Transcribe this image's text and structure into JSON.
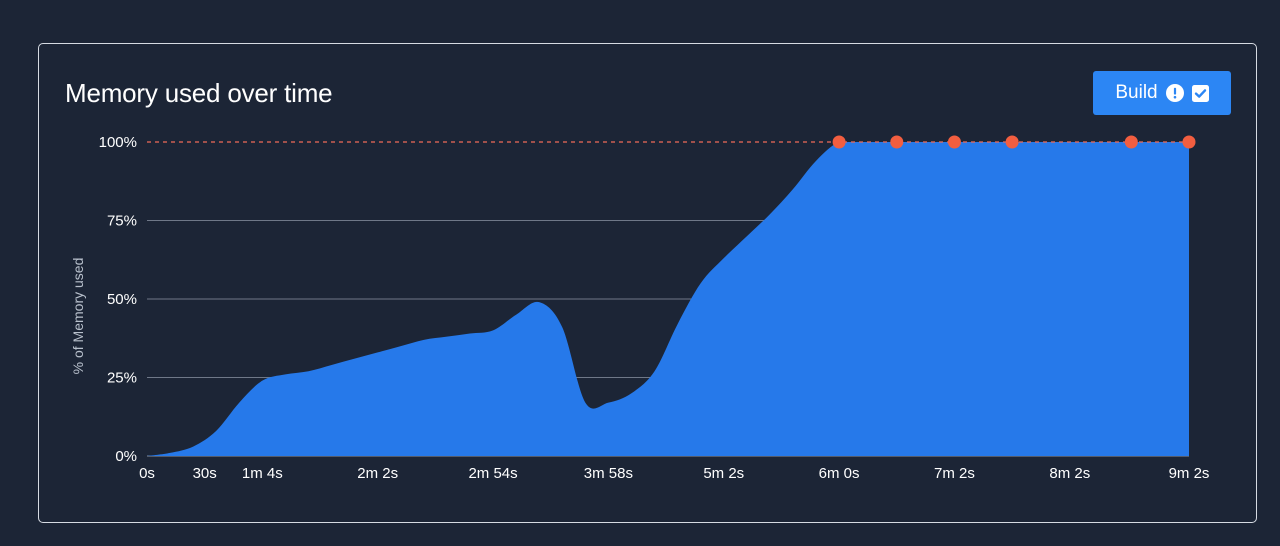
{
  "header": {
    "title": "Memory used over time"
  },
  "build_button": {
    "label": "Build",
    "warning_icon": "exclamation-circle-icon",
    "check_icon": "checkbox-checked-icon"
  },
  "colors": {
    "background": "#1c2536",
    "area_fill": "#2679ea",
    "limit_line": "#ee6a58",
    "marker": "#f25e40",
    "button": "#2c86f4"
  },
  "chart_data": {
    "type": "area",
    "title": "Memory used over time",
    "xlabel": "",
    "ylabel": "% of Memory used",
    "xlim": [
      0,
      542
    ],
    "ylim": [
      0,
      100
    ],
    "y_ticks": [
      {
        "value": 0,
        "label": "0%"
      },
      {
        "value": 25,
        "label": "25%"
      },
      {
        "value": 50,
        "label": "50%"
      },
      {
        "value": 75,
        "label": "75%"
      },
      {
        "value": 100,
        "label": "100%"
      }
    ],
    "x_ticks": [
      {
        "value": 0,
        "label": "0s"
      },
      {
        "value": 30,
        "label": "30s"
      },
      {
        "value": 60,
        "label": "1m 4s"
      },
      {
        "value": 120,
        "label": "2m 2s"
      },
      {
        "value": 180,
        "label": "2m 54s"
      },
      {
        "value": 240,
        "label": "3m 58s"
      },
      {
        "value": 300,
        "label": "5m 2s"
      },
      {
        "value": 360,
        "label": "6m 0s"
      },
      {
        "value": 420,
        "label": "7m 2s"
      },
      {
        "value": 480,
        "label": "8m 2s"
      },
      {
        "value": 542,
        "label": "9m 2s"
      }
    ],
    "grid": true,
    "limit_line": 100,
    "series": [
      {
        "x": [
          0,
          12,
          24,
          36,
          48,
          60,
          72,
          84,
          96,
          108,
          120,
          132,
          144,
          156,
          168,
          180,
          192,
          204,
          216,
          228,
          240,
          252,
          264,
          276,
          288,
          300,
          312,
          324,
          336,
          348,
          360,
          372,
          384,
          396,
          408,
          420,
          432,
          444,
          456,
          468,
          480,
          492,
          504,
          516,
          528,
          542
        ],
        "y": [
          0,
          1,
          3,
          8,
          17,
          24,
          26,
          27,
          29,
          31,
          33,
          35,
          37,
          38,
          39,
          40,
          45,
          49,
          41,
          17,
          17,
          20,
          27,
          42,
          55,
          63,
          70,
          77,
          85,
          94,
          100,
          100,
          100,
          100,
          100,
          100,
          100,
          100,
          100,
          100,
          100,
          100,
          100,
          100,
          100,
          100
        ]
      }
    ],
    "markers": [
      {
        "x": 360,
        "y": 100
      },
      {
        "x": 390,
        "y": 100
      },
      {
        "x": 420,
        "y": 100
      },
      {
        "x": 450,
        "y": 100
      },
      {
        "x": 512,
        "y": 100
      },
      {
        "x": 542,
        "y": 100
      }
    ]
  }
}
